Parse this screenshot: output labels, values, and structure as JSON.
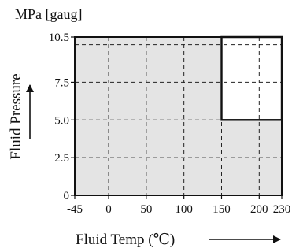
{
  "chart_data": {
    "type": "area",
    "unit_label": "MPa [gaug]",
    "xlabel": "Fluid Temp (℃)",
    "ylabel": "Fluid Pressure",
    "xlim": [
      -45,
      230
    ],
    "ylim": [
      0,
      10.5
    ],
    "x_ticks": [
      -45,
      0,
      50,
      100,
      150,
      200,
      230
    ],
    "x_tick_labels": [
      "-45",
      "0",
      "50",
      "100",
      "150",
      "200",
      "230"
    ],
    "y_ticks": [
      0,
      2.5,
      5.0,
      7.5,
      10.5
    ],
    "y_tick_labels": [
      "0",
      "2.5",
      "5.0",
      "7.5",
      "10.5"
    ],
    "grid": true,
    "grid_style": "dashed",
    "grid_x": [
      0,
      50,
      100,
      150,
      200
    ],
    "grid_y": [
      2.5,
      5.0,
      7.5,
      10
    ],
    "operating_region": [
      [
        -45,
        0
      ],
      [
        230,
        0
      ],
      [
        230,
        5.0
      ],
      [
        150,
        5.0
      ],
      [
        150,
        10.5
      ],
      [
        -45,
        10.5
      ]
    ],
    "excluded_region": [
      [
        150,
        5.0
      ],
      [
        230,
        5.0
      ],
      [
        230,
        10.5
      ],
      [
        150,
        10.5
      ]
    ],
    "colors": {
      "region_fill": "#e4e4e4",
      "excluded_fill": "#ffffff",
      "outline": "#111111",
      "grid": "#222222"
    }
  }
}
